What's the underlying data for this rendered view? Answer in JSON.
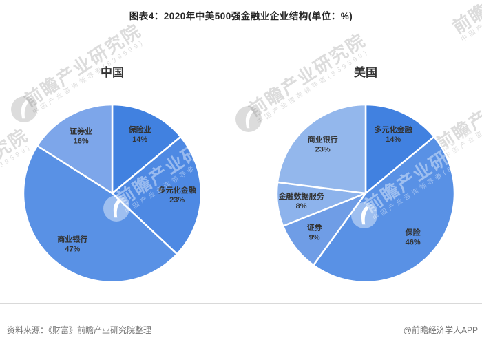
{
  "title": "图表4：2020年中美500强金融业企业结构(单位：%)",
  "chart_data": [
    {
      "type": "pie",
      "title": "中国",
      "unit": "%",
      "start_angle": "12-oclock",
      "direction": "clockwise",
      "labels_position": "inside",
      "slices": [
        {
          "label": "保险业",
          "value": 14,
          "color": "#4181e0"
        },
        {
          "label": "多元化金融",
          "value": 23,
          "color": "#4e89e3"
        },
        {
          "label": "商业银行",
          "value": 47,
          "color": "#5991e5"
        },
        {
          "label": "证券业",
          "value": 16,
          "color": "#7da6ea"
        }
      ]
    },
    {
      "type": "pie",
      "title": "美国",
      "unit": "%",
      "start_angle": "12-oclock",
      "direction": "clockwise",
      "labels_position": "inside",
      "slices": [
        {
          "label": "多元化金融",
          "value": 14,
          "color": "#4181e0"
        },
        {
          "label": "保险",
          "value": 46,
          "color": "#5991e5"
        },
        {
          "label": "证券",
          "value": 9,
          "color": "#6f9de6"
        },
        {
          "label": "金融数据服务",
          "value": 8,
          "color": "#8db3ec"
        },
        {
          "label": "商业银行",
          "value": 23,
          "color": "#93b7ec"
        }
      ]
    }
  ],
  "footer": {
    "source": "资料来源：《财富》前瞻产业研究院整理",
    "credit": "@前瞻经济学人APP"
  },
  "watermark": {
    "brand": "前瞻产业研究院",
    "sub": "中国产业咨询领导者(839599)"
  },
  "style": {
    "label_text_color": "#333333",
    "slice_border_color": "#ffffff"
  }
}
